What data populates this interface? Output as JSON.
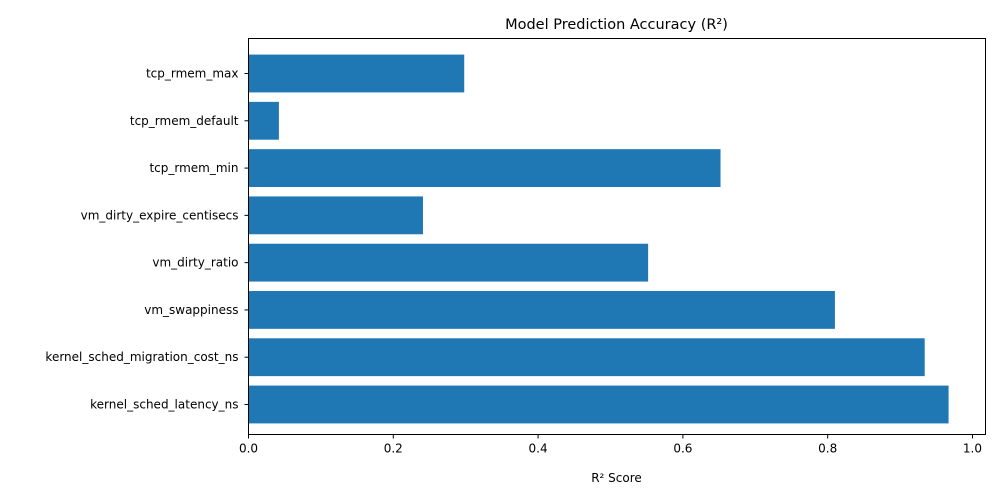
{
  "chart_data": {
    "type": "bar",
    "orientation": "horizontal",
    "title": "Model Prediction Accuracy (R²)",
    "xlabel": "R² Score",
    "ylabel": "",
    "xlim": [
      0.0,
      1.018
    ],
    "xticks": [
      0.0,
      0.2,
      0.4,
      0.6,
      0.8,
      1.0
    ],
    "xtick_labels": [
      "0.0",
      "0.2",
      "0.4",
      "0.6",
      "0.8",
      "1.0"
    ],
    "grid": false,
    "categories": [
      "kernel_sched_latency_ns",
      "kernel_sched_migration_cost_ns",
      "vm_swappiness",
      "vm_dirty_ratio",
      "vm_dirty_expire_centisecs",
      "tcp_rmem_min",
      "tcp_rmem_default",
      "tcp_rmem_max"
    ],
    "values": [
      0.967,
      0.934,
      0.81,
      0.552,
      0.241,
      0.652,
      0.042,
      0.298
    ],
    "bar_color": "#1f77b4"
  }
}
